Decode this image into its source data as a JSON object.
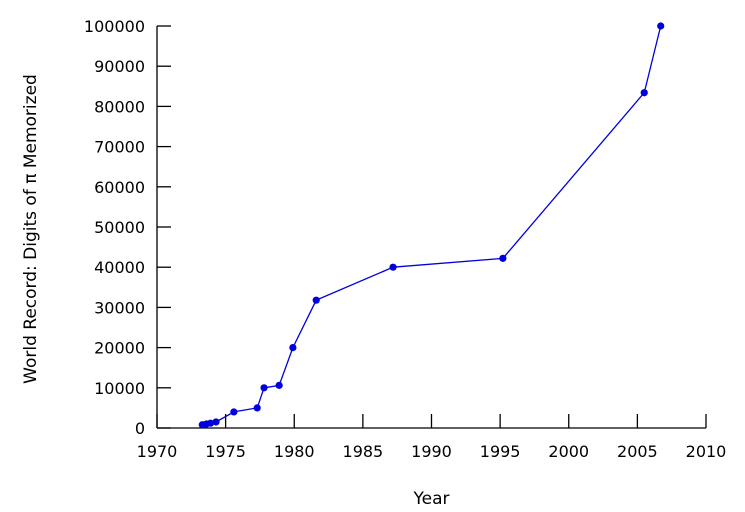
{
  "chart_data": {
    "type": "line",
    "title": "",
    "xlabel": "Year",
    "ylabel": "World Record: Digits of π Memorized",
    "xlim": [
      1970,
      2010
    ],
    "ylim": [
      0,
      100000
    ],
    "x_ticks": [
      1970,
      1975,
      1980,
      1985,
      1990,
      1995,
      2000,
      2005,
      2010
    ],
    "y_ticks": [
      0,
      10000,
      20000,
      30000,
      40000,
      50000,
      60000,
      70000,
      80000,
      90000,
      100000
    ],
    "grid": false,
    "legend": "none",
    "series": [
      {
        "color": "#0000dd",
        "x": [
          1973.3,
          1973.6,
          1973.9,
          1974.3,
          1975.6,
          1977.3,
          1977.8,
          1978.9,
          1979.9,
          1981.6,
          1987.2,
          1995.2,
          2005.5,
          2006.7
        ],
        "y": [
          800,
          1000,
          1200,
          1500,
          4000,
          5000,
          10000,
          10600,
          20000,
          31800,
          40000,
          42200,
          83400,
          100000
        ]
      }
    ]
  }
}
